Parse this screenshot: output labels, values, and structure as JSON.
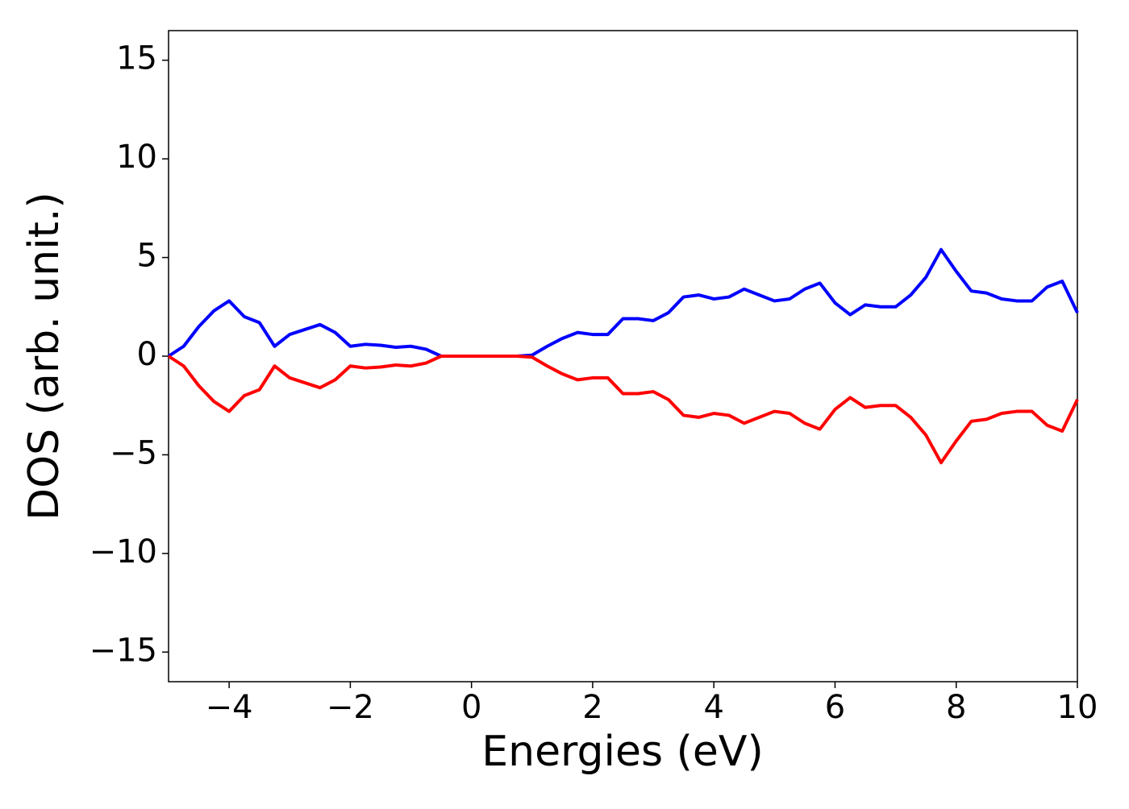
{
  "chart_data": {
    "type": "line",
    "xlabel": "Energies (eV)",
    "ylabel": "DOS (arb. unit.)",
    "x": [
      -5,
      -4.75,
      -4.5,
      -4.25,
      -4,
      -3.75,
      -3.5,
      -3.25,
      -3,
      -2.75,
      -2.5,
      -2.25,
      -2,
      -1.75,
      -1.5,
      -1.25,
      -1,
      -0.75,
      -0.5,
      -0.25,
      0,
      0.25,
      0.5,
      0.75,
      1,
      1.25,
      1.5,
      1.75,
      2,
      2.25,
      2.5,
      2.75,
      3,
      3.25,
      3.5,
      3.75,
      4,
      4.25,
      4.5,
      4.75,
      5,
      5.25,
      5.5,
      5.75,
      6,
      6.25,
      6.5,
      6.75,
      7,
      7.25,
      7.5,
      7.75,
      8,
      8.25,
      8.5,
      8.75,
      9,
      9.25,
      9.5,
      9.75,
      10
    ],
    "series": [
      {
        "color": "#0000ff",
        "values": [
          0,
          0.5,
          1.5,
          2.3,
          2.8,
          2.0,
          1.7,
          0.5,
          1.1,
          1.35,
          1.6,
          1.2,
          0.5,
          0.6,
          0.55,
          0.45,
          0.5,
          0.35,
          0,
          0,
          0,
          0,
          0,
          0,
          0.05,
          0.5,
          0.9,
          1.2,
          1.1,
          1.1,
          1.9,
          1.9,
          1.8,
          2.2,
          3.0,
          3.1,
          2.9,
          3.0,
          3.4,
          3.1,
          2.8,
          2.9,
          3.4,
          3.7,
          2.7,
          2.1,
          2.6,
          2.5,
          2.5,
          3.1,
          4.0,
          5.4,
          4.3,
          3.3,
          3.2,
          2.9,
          2.8,
          2.8,
          3.5,
          3.8,
          2.2
        ]
      },
      {
        "color": "#ff0000",
        "values": [
          0,
          -0.5,
          -1.5,
          -2.3,
          -2.8,
          -2.0,
          -1.7,
          -0.5,
          -1.1,
          -1.35,
          -1.6,
          -1.2,
          -0.5,
          -0.6,
          -0.55,
          -0.45,
          -0.5,
          -0.35,
          0,
          0,
          0,
          0,
          0,
          0,
          -0.05,
          -0.5,
          -0.9,
          -1.2,
          -1.1,
          -1.1,
          -1.9,
          -1.9,
          -1.8,
          -2.2,
          -3.0,
          -3.1,
          -2.9,
          -3.0,
          -3.4,
          -3.1,
          -2.8,
          -2.9,
          -3.4,
          -3.7,
          -2.7,
          -2.1,
          -2.6,
          -2.5,
          -2.5,
          -3.1,
          -4.0,
          -5.4,
          -4.3,
          -3.3,
          -3.2,
          -2.9,
          -2.8,
          -2.8,
          -3.5,
          -3.8,
          -2.2
        ]
      }
    ],
    "xlim": [
      -5,
      10
    ],
    "xticks": [
      {
        "value": -4,
        "label": "−4"
      },
      {
        "value": -2,
        "label": "−2"
      },
      0,
      2,
      4,
      6,
      8,
      10
    ],
    "ylim": [
      -16.5,
      16.5
    ],
    "yticks": [
      {
        "value": -15,
        "label": "−15"
      },
      {
        "value": -10,
        "label": "−10"
      },
      {
        "value": -5,
        "label": "−5"
      },
      0,
      5,
      10,
      15
    ],
    "grid": false
  }
}
